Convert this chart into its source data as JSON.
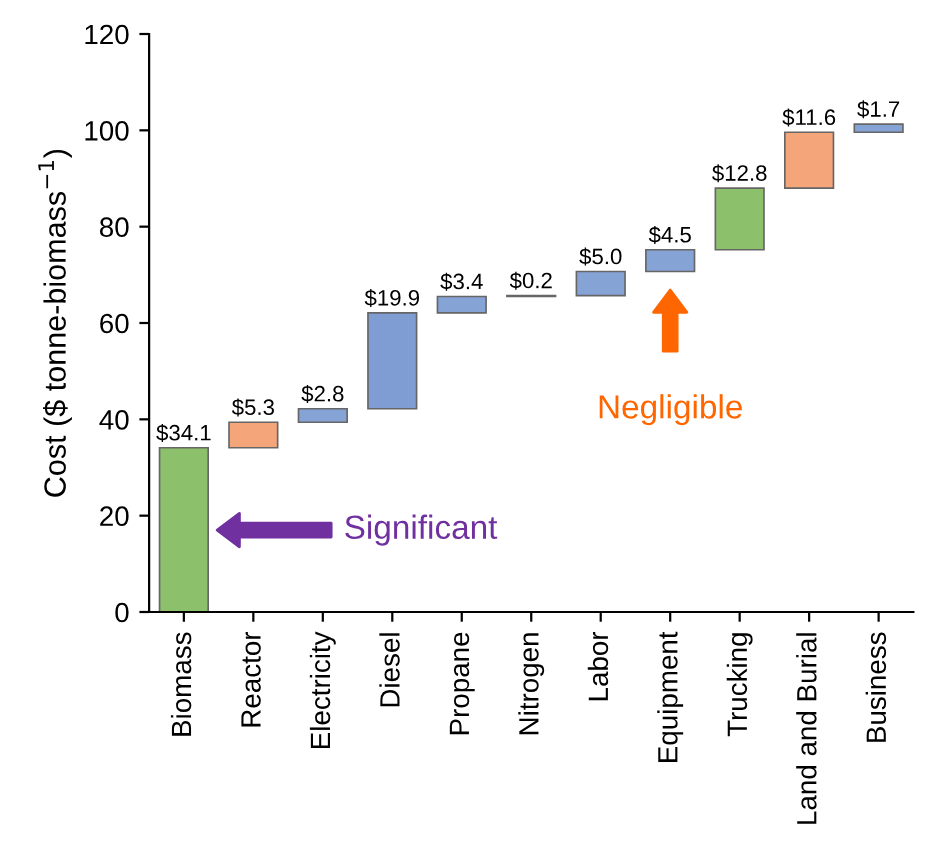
{
  "chart_data": {
    "type": "bar",
    "categories": [
      "Biomass",
      "Reactor",
      "Electricity",
      "Diesel",
      "Propane",
      "Nitrogen",
      "Labor",
      "Equipment",
      "Trucking",
      "Land and Burial",
      "Business"
    ],
    "values": [
      34.1,
      5.3,
      2.8,
      19.9,
      3.4,
      0.2,
      5.0,
      4.5,
      12.8,
      11.6,
      1.7
    ],
    "base": [
      0,
      34.1,
      39.4,
      42.2,
      62.1,
      65.5,
      65.7,
      70.7,
      75.2,
      88.0,
      99.6
    ],
    "colors": [
      "#8cc06a",
      "#f4a67a",
      "#86a3d6",
      "#7f9dd3",
      "#86a3d6",
      "#222222",
      "#86a3d6",
      "#86a3d6",
      "#8cc06a",
      "#f4a67a",
      "#86a3d6"
    ],
    "value_labels": [
      "$34.1",
      "$5.3",
      "$2.8",
      "$19.9",
      "$3.4",
      "$0.2",
      "$5.0",
      "$4.5",
      "$12.8",
      "$11.6",
      "$1.7"
    ],
    "ylabel": "Cost ($ tonne-biomass$^{−1}$)",
    "ylim": [
      0,
      120
    ],
    "yticks": [
      0,
      20,
      40,
      60,
      80,
      100,
      120
    ],
    "grid": false,
    "legend": false,
    "annotations": [
      "Significant",
      "Negligible"
    ]
  }
}
